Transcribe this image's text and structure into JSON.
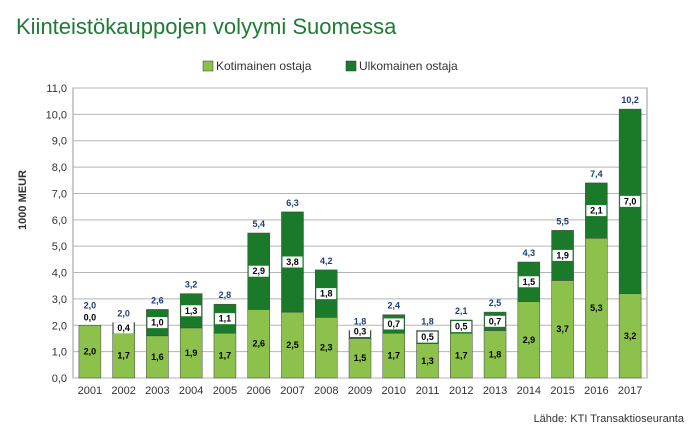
{
  "title": "Kiinteistökauppojen volyymi Suomessa",
  "source": "Lähde: KTI Transaktioseuranta",
  "colors": {
    "domestic": "#8cc14c",
    "foreign": "#1a7a2a",
    "label_box": "#ffffff",
    "total_label": "#1f3e7a",
    "title": "#1e7b34"
  },
  "chart_data": {
    "type": "bar",
    "stacked": true,
    "title": "",
    "xlabel": "",
    "ylabel": "1000 MEUR",
    "ylim": [
      0,
      11
    ],
    "yticks": [
      "0,0",
      "1,0",
      "2,0",
      "3,0",
      "4,0",
      "5,0",
      "6,0",
      "7,0",
      "8,0",
      "9,0",
      "10,0",
      "11,0"
    ],
    "grid": true,
    "legend_position": "top",
    "categories": [
      "2001",
      "2002",
      "2003",
      "2004",
      "2005",
      "2006",
      "2007",
      "2008",
      "2009",
      "2010",
      "2011",
      "2012",
      "2013",
      "2014",
      "2015",
      "2016",
      "2017"
    ],
    "series": [
      {
        "name": "Kotimainen ostaja",
        "values": [
          2.0,
          1.7,
          1.6,
          1.9,
          1.7,
          2.6,
          2.5,
          2.3,
          1.5,
          1.7,
          1.3,
          1.7,
          1.8,
          2.9,
          3.7,
          5.3,
          3.2
        ],
        "labels": [
          "2,0",
          "1,7",
          "1,6",
          "1,9",
          "1,7",
          "2,6",
          "2,5",
          "2,3",
          "1,5",
          "1,7",
          "1,3",
          "1,7",
          "1,8",
          "2,9",
          "3,7",
          "5,3",
          "3,2"
        ]
      },
      {
        "name": "Ulkomainen ostaja",
        "values": [
          0.0,
          0.4,
          1.0,
          1.3,
          1.1,
          2.9,
          3.8,
          1.8,
          0.3,
          0.7,
          0.5,
          0.5,
          0.7,
          1.5,
          1.9,
          2.1,
          7.0
        ],
        "labels": [
          "0,0",
          "0,4",
          "1,0",
          "1,3",
          "1,1",
          "2,9",
          "3,8",
          "1,8",
          "0,3",
          "0,7",
          "0,5",
          "0,5",
          "0,7",
          "1,5",
          "1,9",
          "2,1",
          "7,0"
        ]
      }
    ],
    "totals": [
      2.0,
      2.0,
      2.6,
      3.2,
      2.8,
      5.4,
      6.3,
      4.2,
      1.8,
      2.4,
      1.8,
      2.1,
      2.5,
      4.3,
      5.5,
      7.4,
      10.2
    ],
    "total_labels": [
      "2,0",
      "2,0",
      "2,6",
      "3,2",
      "2,8",
      "5,4",
      "6,3",
      "4,2",
      "1,8",
      "2,4",
      "1,8",
      "2,1",
      "2,5",
      "4,3",
      "5,5",
      "7,4",
      "10,2"
    ]
  }
}
